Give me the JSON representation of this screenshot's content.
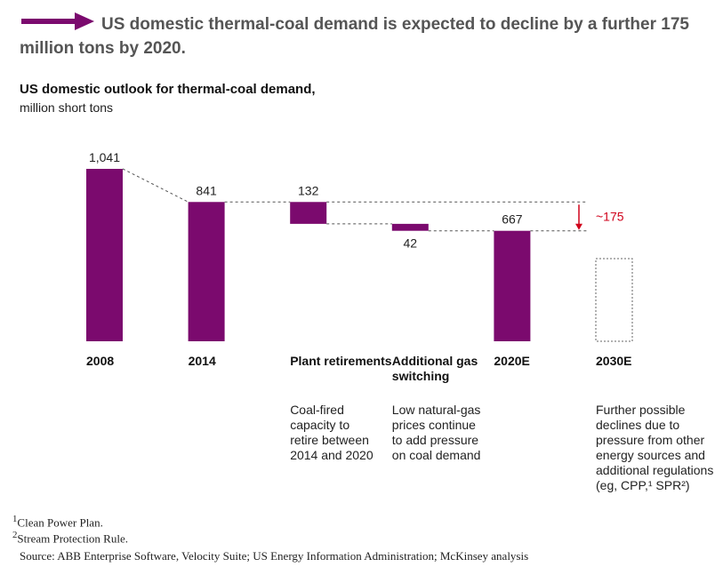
{
  "chart_data": {
    "type": "waterfall",
    "title": "US domestic thermal-coal demand is expected to decline by a further 175 million tons by 2020.",
    "subtitle": "US domestic outlook for thermal-coal demand,",
    "unit": "million short tons",
    "categories": [
      "2008",
      "2014",
      "Plant retirements",
      "Additional gas switching",
      "2020E",
      "2030E"
    ],
    "measures": [
      "total",
      "total",
      "decrease",
      "decrease",
      "total",
      "total"
    ],
    "values": [
      1041,
      841,
      132,
      42,
      667,
      null
    ],
    "value_labels": [
      "1,041",
      "841",
      "132",
      "42",
      "667",
      null
    ],
    "descriptions": [
      null,
      null,
      "Coal-fired capacity to retire between 2014 and 2020",
      "Low natural-gas prices continue to add pressure on coal demand",
      null,
      "Further possible declines due to pressure from other energy sources and additional regulations (eg, CPP,¹ SPR²)"
    ],
    "color": "#7b0a6e",
    "annotation": {
      "text": "~175",
      "color": "#d0021b"
    },
    "footnotes": [
      {
        "marker": "1",
        "text": "Clean Power Plan."
      },
      {
        "marker": "2",
        "text": "Stream Protection Rule."
      }
    ],
    "source": "Source: ABB Enterprise Software, Velocity Suite; US Energy Information Administration; McKinsey analysis"
  }
}
